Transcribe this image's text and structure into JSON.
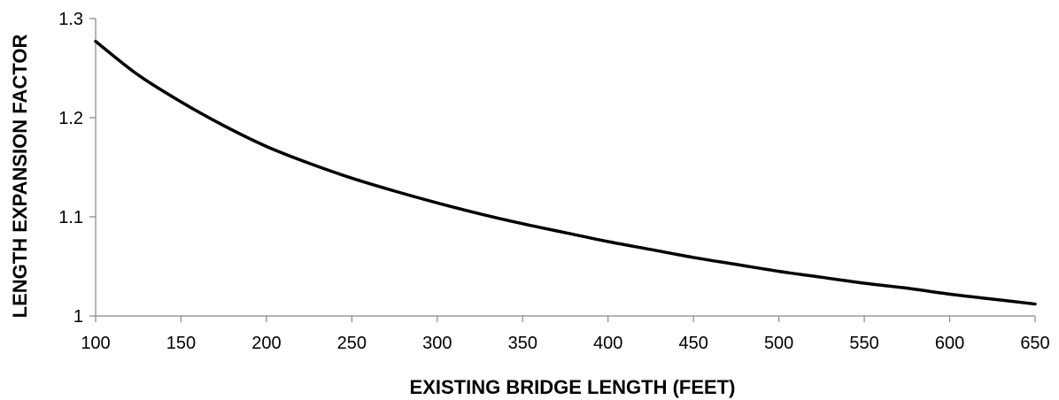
{
  "chart_data": {
    "type": "line",
    "xlabel": "EXISTING BRIDGE LENGTH (FEET)",
    "ylabel": "LENGTH EXPANSION FACTOR",
    "xlim": [
      100,
      650
    ],
    "ylim": [
      1,
      1.3
    ],
    "xticks": [
      "100",
      "150",
      "200",
      "250",
      "300",
      "350",
      "400",
      "450",
      "500",
      "550",
      "600",
      "650"
    ],
    "yticks": [
      "1",
      "1.1",
      "1.2",
      "1.3"
    ],
    "grid": false,
    "legend": "none",
    "line_color": "#000000",
    "axis_color": "#868686",
    "series": [
      {
        "x": [
          100,
          125,
          150,
          175,
          200,
          225,
          250,
          275,
          300,
          325,
          350,
          375,
          400,
          425,
          450,
          475,
          500,
          525,
          550,
          575,
          600,
          625,
          650
        ],
        "y": [
          1.277,
          1.243,
          1.216,
          1.192,
          1.171,
          1.154,
          1.139,
          1.126,
          1.114,
          1.103,
          1.093,
          1.084,
          1.075,
          1.067,
          1.059,
          1.052,
          1.045,
          1.039,
          1.033,
          1.028,
          1.022,
          1.017,
          1.012
        ]
      }
    ]
  }
}
